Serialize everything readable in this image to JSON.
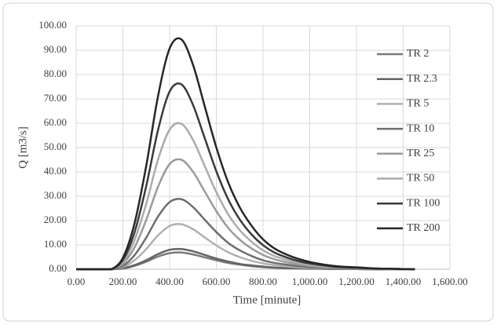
{
  "chart_data": {
    "type": "line",
    "x_label": "Time [minute]",
    "y_label": "Q [m3/s]",
    "x": [
      0,
      50,
      100,
      150,
      200,
      250,
      300,
      350,
      400,
      450,
      500,
      550,
      600,
      650,
      700,
      750,
      800,
      850,
      900,
      950,
      1000,
      1050,
      1100,
      1150,
      1200,
      1250,
      1300,
      1350,
      1400,
      1450
    ],
    "series": [
      {
        "name": "TR 2",
        "color": "#7a7a7a",
        "values": [
          0,
          0,
          0,
          0,
          0.3,
          1.4,
          3.1,
          5.2,
          6.6,
          6.9,
          6.1,
          4.9,
          3.7,
          2.6,
          1.9,
          1.3,
          0.9,
          0.6,
          0.4,
          0.3,
          0.2,
          0.2,
          0.1,
          0.1,
          0.1,
          0,
          0,
          0,
          0,
          0
        ]
      },
      {
        "name": "TR 2.3",
        "color": "#646464",
        "values": [
          0,
          0,
          0,
          0,
          0.4,
          1.7,
          3.7,
          6.2,
          8.0,
          8.3,
          7.4,
          5.9,
          4.4,
          3.2,
          2.2,
          1.6,
          1.1,
          0.7,
          0.5,
          0.4,
          0.3,
          0.2,
          0.1,
          0.1,
          0.1,
          0,
          0,
          0,
          0,
          0
        ]
      },
      {
        "name": "TR 5",
        "color": "#b0b0b0",
        "values": [
          0,
          0,
          0,
          0,
          0.9,
          3.7,
          8.3,
          13.9,
          17.8,
          18.5,
          16.5,
          13.1,
          9.8,
          7.0,
          5.0,
          3.5,
          2.4,
          1.7,
          1.2,
          0.8,
          0.6,
          0.4,
          0.3,
          0.2,
          0.1,
          0.1,
          0.1,
          0,
          0,
          0
        ]
      },
      {
        "name": "TR 10",
        "color": "#6e6e6e",
        "values": [
          0,
          0,
          0,
          0,
          1.4,
          5.8,
          13.0,
          21.6,
          27.6,
          28.8,
          25.6,
          20.4,
          15.3,
          10.9,
          7.8,
          5.5,
          3.7,
          2.6,
          1.9,
          1.3,
          0.9,
          0.6,
          0.4,
          0.3,
          0.2,
          0.1,
          0.1,
          0.1,
          0,
          0
        ]
      },
      {
        "name": "TR 25",
        "color": "#9a9a9a",
        "values": [
          0,
          0,
          0,
          0,
          2.3,
          9.0,
          20.3,
          33.8,
          43.2,
          45.0,
          40.1,
          32.0,
          23.9,
          17.1,
          12.2,
          8.6,
          5.9,
          4.1,
          2.9,
          2.0,
          1.4,
          1.0,
          0.7,
          0.5,
          0.4,
          0.2,
          0.1,
          0.1,
          0,
          0
        ]
      },
      {
        "name": "TR 50",
        "color": "#ababab",
        "values": [
          0,
          0,
          0,
          0,
          3.0,
          12.0,
          26.9,
          44.9,
          57.4,
          59.8,
          53.2,
          42.5,
          31.7,
          22.7,
          16.1,
          11.4,
          7.8,
          5.4,
          3.9,
          2.7,
          1.9,
          1.3,
          0.9,
          0.7,
          0.5,
          0.3,
          0.2,
          0.1,
          0.1,
          0
        ]
      },
      {
        "name": "TR 100",
        "color": "#3a3a3a",
        "values": [
          0,
          0,
          0,
          0,
          3.8,
          15.2,
          34.2,
          57.0,
          73.0,
          76.0,
          67.6,
          54.0,
          40.3,
          28.9,
          20.5,
          14.4,
          9.9,
          6.8,
          4.9,
          3.4,
          2.4,
          1.7,
          1.1,
          0.8,
          0.6,
          0.4,
          0.2,
          0.2,
          0.1,
          0
        ]
      },
      {
        "name": "TR 200",
        "color": "#262626",
        "values": [
          0,
          0,
          0,
          0,
          4.7,
          18.9,
          42.5,
          70.9,
          90.7,
          94.5,
          84.1,
          67.1,
          50.1,
          35.9,
          25.5,
          18.0,
          12.3,
          8.5,
          6.1,
          4.3,
          3.0,
          2.1,
          1.4,
          1.0,
          0.8,
          0.5,
          0.3,
          0.2,
          0.1,
          0
        ]
      }
    ],
    "xlim": [
      0,
      1600
    ],
    "ylim": [
      0,
      100
    ],
    "xticks": [
      {
        "value": 0,
        "label": "0.00"
      },
      {
        "value": 200,
        "label": "200.00"
      },
      {
        "value": 400,
        "label": "400.00"
      },
      {
        "value": 600,
        "label": "600.00"
      },
      {
        "value": 800,
        "label": "800.00"
      },
      {
        "value": 1000,
        "label": "1,000.00"
      },
      {
        "value": 1200,
        "label": "1,200.00"
      },
      {
        "value": 1400,
        "label": "1,400.00"
      },
      {
        "value": 1600,
        "label": "1,600.00"
      }
    ],
    "yticks": [
      {
        "value": 0,
        "label": "0.00"
      },
      {
        "value": 10,
        "label": "10.00"
      },
      {
        "value": 20,
        "label": "20.00"
      },
      {
        "value": 30,
        "label": "30.00"
      },
      {
        "value": 40,
        "label": "40.00"
      },
      {
        "value": 50,
        "label": "50.00"
      },
      {
        "value": 60,
        "label": "60.00"
      },
      {
        "value": 70,
        "label": "70.00"
      },
      {
        "value": 80,
        "label": "80.00"
      },
      {
        "value": 90,
        "label": "90.00"
      },
      {
        "value": 100,
        "label": "100.00"
      }
    ],
    "grid": true,
    "legend_position": "right"
  }
}
